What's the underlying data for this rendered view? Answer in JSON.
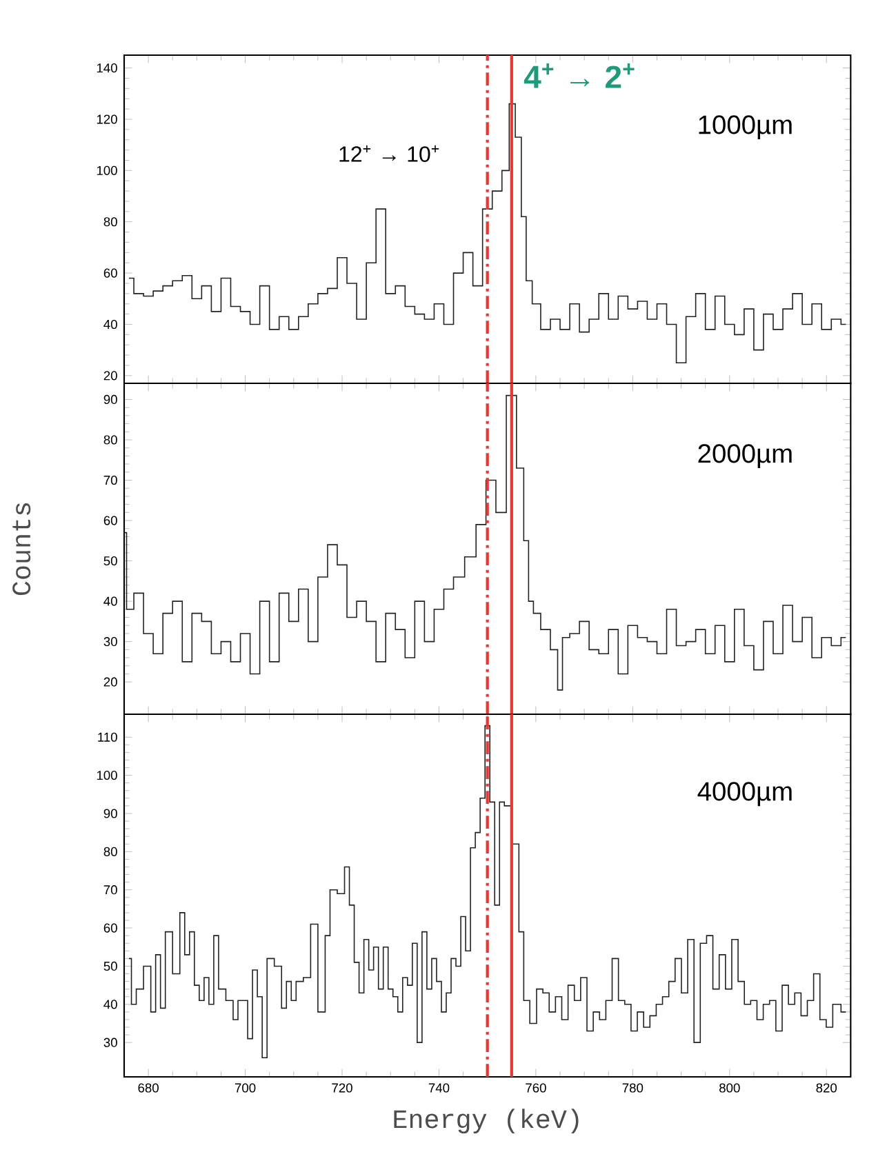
{
  "chart_data": [
    {
      "type": "step",
      "xlim": [
        675,
        825
      ],
      "ylim": [
        17,
        145
      ],
      "xticks": [
        680,
        700,
        720,
        740,
        760,
        780,
        800,
        820
      ],
      "yticks": [
        20,
        40,
        60,
        80,
        100,
        120,
        140
      ],
      "tick_labels": "y",
      "series": [
        {
          "color": "#222222",
          "x": [
            676,
            678,
            680,
            682,
            684,
            686,
            688,
            690,
            692,
            694,
            696,
            698,
            700,
            702,
            704,
            706,
            708,
            710,
            712,
            714,
            716,
            718,
            720,
            722,
            724,
            726,
            728,
            730,
            732,
            734,
            736,
            738,
            740,
            742,
            744,
            746,
            748,
            750,
            752,
            754,
            755,
            756.5,
            757.5,
            758.5,
            760,
            762,
            764,
            766,
            768,
            770,
            772,
            774,
            776,
            778,
            780,
            782,
            784,
            786,
            788,
            790,
            792,
            794,
            796,
            798,
            800,
            802,
            804,
            806,
            808,
            810,
            812,
            814,
            816,
            818,
            820,
            822,
            824
          ],
          "values": [
            58,
            52,
            51,
            53,
            55,
            57,
            59,
            50,
            55,
            45,
            58,
            47,
            45,
            40,
            55,
            38,
            43,
            38,
            43,
            48,
            52,
            54,
            66,
            56,
            42,
            64,
            85,
            52,
            55,
            47,
            44,
            42,
            48,
            40,
            60,
            68,
            55,
            85,
            92,
            100,
            126,
            113,
            82,
            57,
            48,
            38,
            42,
            38,
            48,
            37,
            42,
            52,
            42,
            51,
            46,
            49,
            42,
            48,
            40,
            25,
            43,
            52,
            38,
            51,
            40,
            36,
            46,
            30,
            44,
            38,
            46,
            52,
            40,
            48,
            38,
            42,
            40
          ]
        }
      ],
      "ref_lines": [
        {
          "axis": "x",
          "value": 750,
          "color": "#e53935",
          "line_style": "dashdot",
          "label": "12$^{+}$ → 10$^{+}$"
        },
        {
          "axis": "x",
          "value": 755,
          "color": "#e53935",
          "line_style": "solid",
          "label": "4$^{+}$ → 2$^{+}$"
        }
      ],
      "annotations": [
        "1000µm"
      ]
    },
    {
      "type": "step",
      "xlim": [
        675,
        825
      ],
      "ylim": [
        12,
        94
      ],
      "xticks": [
        680,
        700,
        720,
        740,
        760,
        780,
        800,
        820
      ],
      "yticks": [
        20,
        30,
        40,
        50,
        60,
        70,
        80,
        90
      ],
      "tick_labels": "y",
      "ylabel": "Counts",
      "series": [
        {
          "color": "#222222",
          "x": [
            675,
            676,
            678,
            680,
            682,
            684,
            686,
            688,
            690,
            692,
            694,
            696,
            698,
            700,
            702,
            704,
            706,
            708,
            710,
            712,
            714,
            716,
            718,
            720,
            722,
            724,
            726,
            728,
            730,
            732,
            734,
            736,
            738,
            740,
            742,
            744,
            746.6,
            748.7,
            750.7,
            752.8,
            755,
            757,
            758,
            759,
            760,
            762,
            764,
            765,
            766,
            768,
            770,
            772,
            774,
            776,
            778,
            780,
            782,
            784,
            786,
            788,
            790,
            792,
            794,
            796,
            798,
            800,
            802,
            804,
            806,
            808,
            810,
            812,
            814,
            816,
            818,
            820,
            822,
            824
          ],
          "values": [
            57,
            38,
            42,
            32,
            27,
            37,
            40,
            25,
            37,
            35,
            27,
            30,
            25,
            32,
            22,
            40,
            25,
            42,
            35,
            43,
            30,
            46,
            54,
            49,
            36,
            40,
            35,
            25,
            37,
            33,
            26,
            40,
            30,
            38,
            43,
            46,
            51,
            59,
            70,
            62,
            91,
            73,
            55,
            40,
            37,
            33,
            28,
            18,
            31,
            32,
            35,
            28,
            27,
            33,
            22,
            34,
            31,
            30,
            27,
            38,
            29,
            30,
            33,
            27,
            34,
            25,
            38,
            29,
            23,
            35,
            27,
            39,
            30,
            36,
            26,
            31,
            29,
            31
          ]
        }
      ],
      "ref_lines": [
        {
          "axis": "x",
          "value": 750,
          "color": "#e53935",
          "line_style": "dashdot"
        },
        {
          "axis": "x",
          "value": 755,
          "color": "#e53935",
          "line_style": "solid"
        }
      ],
      "annotations": [
        "2000µm"
      ]
    },
    {
      "type": "step",
      "xlim": [
        675,
        825
      ],
      "ylim": [
        21,
        116
      ],
      "xticks": [
        680,
        700,
        720,
        740,
        760,
        780,
        800,
        820
      ],
      "yticks": [
        30,
        40,
        50,
        60,
        70,
        80,
        90,
        100,
        110
      ],
      "xlabel": "Energy (keV)",
      "series": [
        {
          "color": "#222222",
          "x": [
            676,
            677,
            678,
            680,
            681,
            682,
            683,
            684,
            686,
            687,
            688,
            689,
            690,
            691,
            692,
            693,
            694,
            695,
            697,
            698,
            699,
            700,
            701,
            702,
            703,
            704,
            705,
            707,
            708,
            709,
            710,
            711,
            713,
            714,
            716,
            717,
            718,
            720,
            721,
            722,
            723,
            724,
            725,
            726,
            727,
            728,
            729,
            730,
            731,
            732,
            733,
            734,
            735,
            736,
            737,
            738,
            739,
            740,
            741,
            742,
            743,
            744,
            745,
            746,
            747,
            748,
            749,
            750,
            751,
            752,
            753,
            754,
            756,
            757,
            758,
            759.5,
            760.8,
            762.1,
            763.4,
            764.7,
            766,
            767.3,
            768.6,
            769.9,
            771.2,
            772.5,
            773.8,
            775.1,
            776.4,
            777.7,
            779,
            780.3,
            781.6,
            782.9,
            784.2,
            785.5,
            786.8,
            788.1,
            789.4,
            790.7,
            792,
            793.3,
            794.6,
            795.9,
            797.2,
            798.5,
            799.8,
            801.1,
            802.4,
            803.7,
            805,
            806.3,
            807.6,
            808.9,
            810.2,
            811.5,
            812.8,
            814.1,
            815.4,
            816.7,
            818,
            819.3,
            820.6,
            822,
            824
          ],
          "values": [
            52,
            40,
            44,
            50,
            38,
            53,
            39,
            59,
            48,
            64,
            53,
            59,
            45,
            41,
            47,
            40,
            58,
            44,
            41,
            36,
            41,
            41,
            31,
            49,
            42,
            26,
            52,
            50,
            39,
            46,
            41,
            46,
            47,
            61,
            38,
            58,
            70,
            69,
            76,
            66,
            51,
            43,
            57,
            49,
            55,
            44,
            55,
            44,
            42,
            38,
            47,
            45,
            56,
            30,
            59,
            44,
            52,
            46,
            38,
            43,
            52,
            50,
            63,
            54,
            81,
            85,
            94,
            113,
            93,
            66,
            93,
            92,
            82,
            59,
            41,
            35,
            44,
            43,
            38,
            42,
            36,
            45,
            41,
            47,
            33,
            38,
            36,
            41,
            52,
            41,
            40,
            33,
            38,
            34,
            37,
            40,
            42,
            46,
            52,
            43,
            57,
            30,
            56,
            58,
            44,
            53,
            44,
            57,
            46,
            40,
            41,
            36,
            40,
            41,
            33,
            45,
            40,
            43,
            37,
            41,
            48,
            36,
            34,
            40,
            38
          ]
        }
      ],
      "ref_lines": [
        {
          "axis": "x",
          "value": 750,
          "color": "#e53935",
          "line_style": "dashdot"
        },
        {
          "axis": "x",
          "value": 755,
          "color": "#e53935",
          "line_style": "solid"
        }
      ],
      "annotations": [
        "4000µm"
      ]
    }
  ]
}
